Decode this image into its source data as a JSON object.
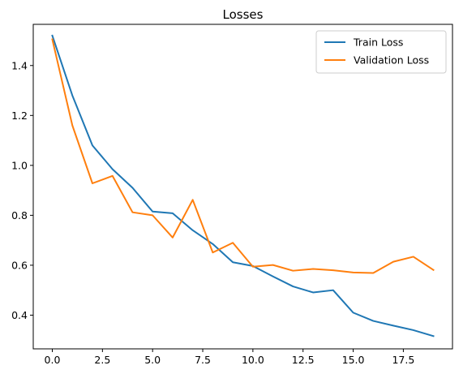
{
  "chart_data": {
    "type": "line",
    "title": "Losses",
    "xlabel": "",
    "ylabel": "",
    "xlim": [
      -0.95,
      19.95
    ],
    "ylim": [
      0.265,
      1.565
    ],
    "xticks": [
      0.0,
      2.5,
      5.0,
      7.5,
      10.0,
      12.5,
      15.0,
      17.5
    ],
    "xtick_labels": [
      "0.0",
      "2.5",
      "5.0",
      "7.5",
      "10.0",
      "12.5",
      "15.0",
      "17.5"
    ],
    "yticks": [
      0.4,
      0.6,
      0.8,
      1.0,
      1.2,
      1.4
    ],
    "ytick_labels": [
      "0.4",
      "0.6",
      "0.8",
      "1.0",
      "1.2",
      "1.4"
    ],
    "grid": false,
    "legend_position": "top-right",
    "x": [
      0,
      1,
      2,
      3,
      4,
      5,
      6,
      7,
      8,
      9,
      10,
      11,
      12,
      13,
      14,
      15,
      16,
      17,
      18,
      19
    ],
    "series": [
      {
        "name": "Train Loss",
        "color": "#1f77b4",
        "values": [
          1.52,
          1.28,
          1.08,
          0.985,
          0.91,
          0.815,
          0.808,
          0.74,
          0.685,
          0.612,
          0.597,
          0.555,
          0.515,
          0.491,
          0.5,
          0.41,
          0.377,
          0.358,
          0.34,
          0.316
        ]
      },
      {
        "name": "Validation Loss",
        "color": "#ff7f0e",
        "values": [
          1.505,
          1.16,
          0.928,
          0.958,
          0.812,
          0.8,
          0.711,
          0.862,
          0.651,
          0.69,
          0.594,
          0.601,
          0.578,
          0.585,
          0.58,
          0.571,
          0.569,
          0.614,
          0.634,
          0.581
        ]
      }
    ]
  }
}
